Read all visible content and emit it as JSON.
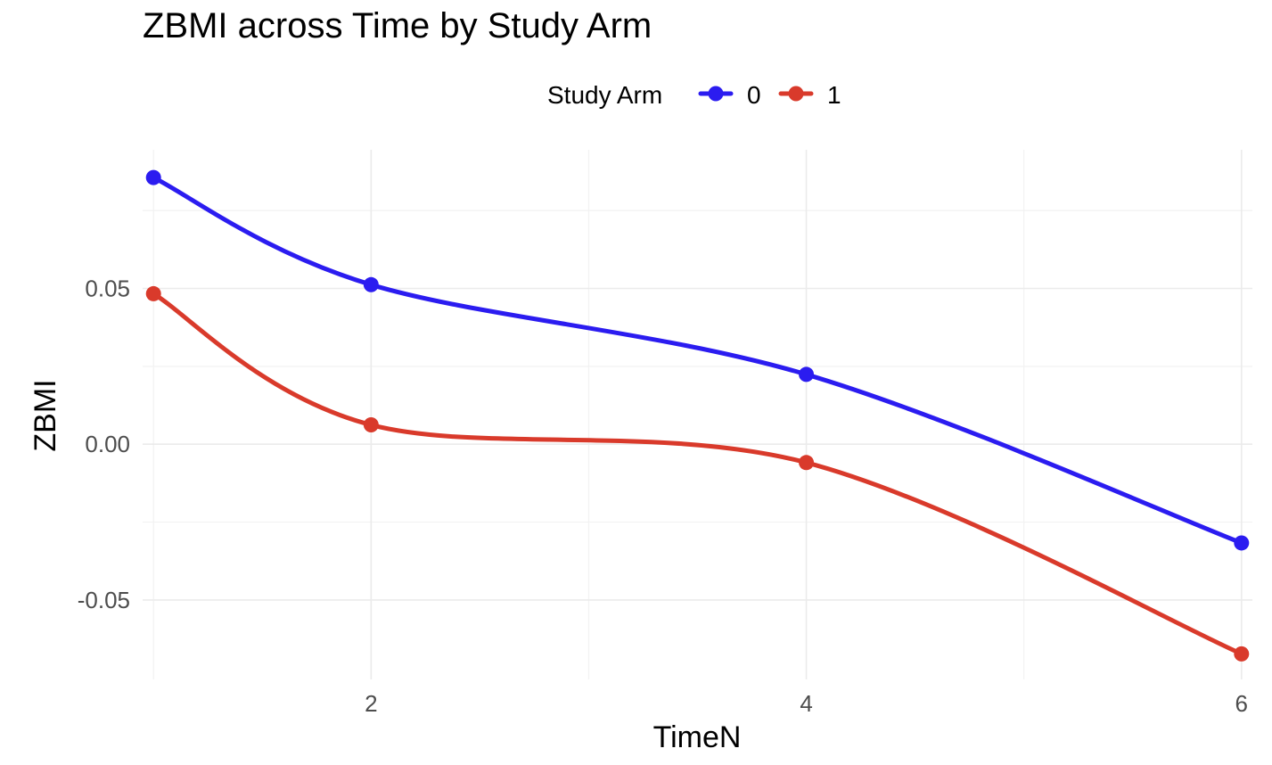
{
  "chart_data": {
    "type": "line",
    "title": "ZBMI across Time by Study Arm",
    "xlabel": "TimeN",
    "ylabel": "ZBMI",
    "legend": {
      "title": "Study Arm",
      "position": "top"
    },
    "xlim": [
      0.95,
      6.05
    ],
    "ylim": [
      -0.0755,
      0.0945
    ],
    "x_ticks": [
      2,
      4,
      6
    ],
    "x_tick_labels": [
      "2",
      "4",
      "6"
    ],
    "y_ticks": [
      -0.05,
      0.0,
      0.05
    ],
    "y_tick_labels": [
      "-0.05",
      "0.00",
      "0.05"
    ],
    "x_minor_ticks": [
      1,
      3,
      5
    ],
    "y_minor_ticks": [
      -0.025,
      0.025,
      0.075
    ],
    "grid": true,
    "series": [
      {
        "name": "0",
        "color": "#2b1cf0",
        "x": [
          1,
          2,
          4,
          6
        ],
        "y": [
          0.0856,
          0.0512,
          0.0224,
          -0.0317
        ]
      },
      {
        "name": "1",
        "color": "#d93a2b",
        "x": [
          1,
          2,
          4,
          6
        ],
        "y": [
          0.0483,
          0.0062,
          -0.0059,
          -0.0673
        ]
      }
    ]
  }
}
